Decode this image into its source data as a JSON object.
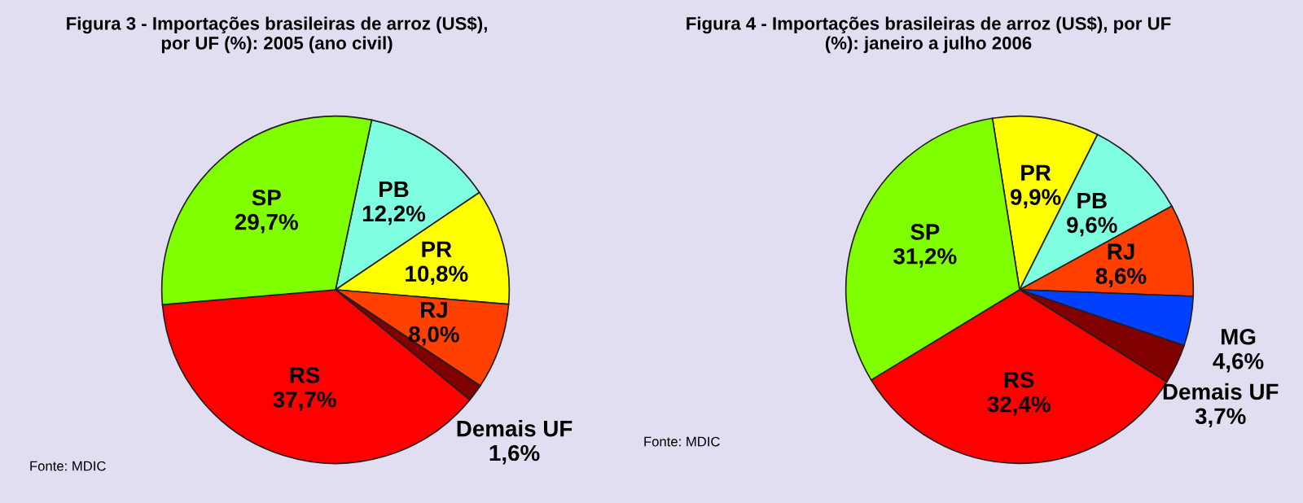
{
  "chart_data": [
    {
      "type": "pie",
      "title": "Figura 3 - Importações brasileiras de arroz (US$),\npor UF (%): 2005 (ano civil)",
      "categories": [
        "PB",
        "PR",
        "RJ",
        "Demais UF",
        "RS",
        "SP"
      ],
      "values": [
        12.2,
        10.8,
        8.0,
        1.6,
        37.7,
        29.7
      ],
      "value_labels": [
        "12,2%",
        "10,8%",
        "8,0%",
        "1,6%",
        "37,7%",
        "29,7%"
      ],
      "colors": [
        "#80ffe0",
        "#ffff00",
        "#ff4000",
        "#800000",
        "#ff0000",
        "#80ff00"
      ],
      "annotations": [
        "Fonte: MDIC"
      ]
    },
    {
      "type": "pie",
      "title": "Figura 4 - Importações brasileiras de arroz (US$), por UF\n(%): janeiro a julho 2006",
      "categories": [
        "PR",
        "PB",
        "RJ",
        "MG",
        "Demais UF",
        "RS",
        "SP"
      ],
      "values": [
        9.9,
        9.6,
        8.6,
        4.6,
        3.7,
        32.4,
        31.2
      ],
      "value_labels": [
        "9,9%",
        "9,6%",
        "8,6%",
        "4,6%",
        "3,7%",
        "32,4%",
        "31,2%"
      ],
      "colors": [
        "#ffff00",
        "#80ffe0",
        "#ff4000",
        "#0040ff",
        "#800000",
        "#ff0000",
        "#80ff00"
      ],
      "annotations": [
        "Fonte: MDIC"
      ]
    }
  ]
}
